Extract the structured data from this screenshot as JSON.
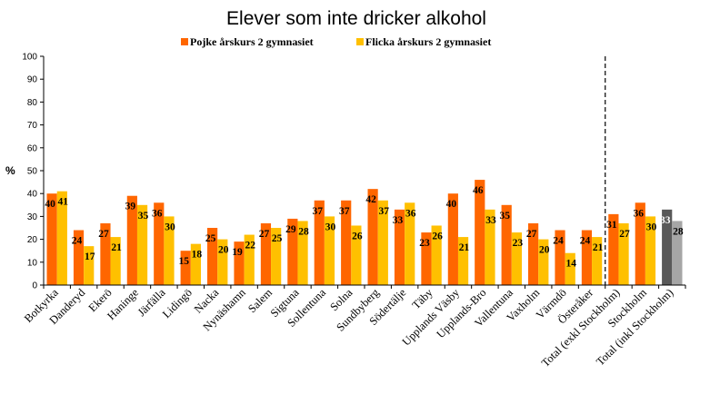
{
  "chart_data": {
    "type": "bar",
    "title": "Elever som inte dricker alkohol",
    "ylabel": "%",
    "ylim": [
      0,
      100
    ],
    "yticks": [
      0,
      10,
      20,
      30,
      40,
      50,
      60,
      70,
      80,
      90,
      100
    ],
    "legend_position": "top-center",
    "categories": [
      "Botkyrka",
      "Danderyd",
      "Ekerö",
      "Haninge",
      "Järfälla",
      "Lidingö",
      "Nacka",
      "Nynäshamn",
      "Salem",
      "Sigtuna",
      "Sollentuna",
      "Solna",
      "Sundbyberg",
      "Södertälje",
      "Täby",
      "Upplands Väsby",
      "Upplands-Bro",
      "Vallentuna",
      "Vaxholm",
      "Värmdö",
      "Österåker",
      "Total (exkl Stockholm)",
      "Stockholm",
      "Total (inkl Stockholm)"
    ],
    "series": [
      {
        "name": "Pojke årskurs 2 gymnasiet",
        "color": "#ff6600",
        "values": [
          40,
          24,
          27,
          39,
          36,
          15,
          25,
          19,
          27,
          29,
          37,
          37,
          42,
          33,
          23,
          40,
          46,
          35,
          27,
          24,
          24,
          31,
          36,
          33
        ]
      },
      {
        "name": "Flicka årskurs 2 gymnasiet",
        "color": "#ffc000",
        "values": [
          41,
          17,
          21,
          35,
          30,
          18,
          20,
          22,
          25,
          28,
          30,
          26,
          37,
          36,
          26,
          21,
          33,
          23,
          20,
          14,
          21,
          27,
          30,
          28
        ]
      }
    ],
    "highlight_last": {
      "pojke_color": "#595959",
      "flicka_color": "#a6a6a6"
    },
    "divider_after_category": "Österåker",
    "grid": false
  }
}
